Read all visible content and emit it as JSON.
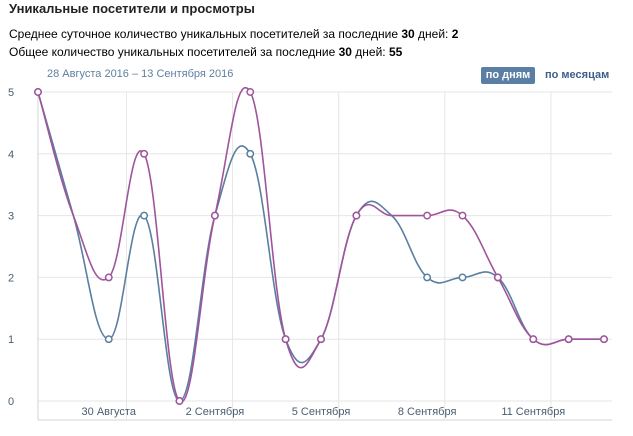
{
  "header": {
    "title": "Уникальные посетители и просмотры",
    "stat1": {
      "text": "Среднее суточное количество уникальных посетителей за последние ",
      "days": "30",
      "mid": " дней: ",
      "value": "2"
    },
    "stat2": {
      "text": "Общее количество уникальных посетителей за последние ",
      "days": "30",
      "mid": " дней: ",
      "value": "55"
    }
  },
  "date_range": "28 Августа 2016 – 13 Сентября 2016",
  "toggle": {
    "days_label": "по дням",
    "months_label": "по месяцам",
    "selected": "days"
  },
  "colors": {
    "unique": "#5a7fa1",
    "views": "#a0549b",
    "grid": "#e6e6e6",
    "button": "#5b7ea5"
  },
  "chart_data": {
    "type": "line",
    "x": [
      "28 Aug",
      "29 Aug",
      "30 Aug",
      "31 Aug",
      "1 Sep",
      "2 Sep",
      "3 Sep",
      "4 Sep",
      "5 Sep",
      "6 Sep",
      "7 Sep",
      "8 Sep",
      "9 Sep",
      "10 Sep",
      "11 Sep",
      "12 Sep",
      "13 Sep"
    ],
    "x_ticks": [
      {
        "index": 2,
        "label": "30 Августа"
      },
      {
        "index": 5,
        "label": "2 Сентября"
      },
      {
        "index": 8,
        "label": "5 Сентября"
      },
      {
        "index": 11,
        "label": "8 Сентября"
      },
      {
        "index": 14,
        "label": "11 Сентября"
      }
    ],
    "y_ticks": [
      0,
      1,
      2,
      3,
      4,
      5
    ],
    "ylim": [
      0,
      5
    ],
    "series": [
      {
        "key": "unique",
        "values": [
          5,
          3,
          1,
          3,
          0,
          3,
          4,
          1,
          1,
          3,
          3,
          2,
          2,
          2,
          1,
          1,
          1
        ]
      },
      {
        "key": "views",
        "values": [
          5,
          3,
          2,
          4,
          0,
          3,
          5,
          1,
          1,
          3,
          3,
          3,
          3,
          2,
          1,
          1,
          1
        ]
      }
    ],
    "markers": {
      "unique": [
        0,
        2,
        3,
        4,
        5,
        6,
        7,
        8,
        9,
        11,
        12,
        13,
        14,
        15,
        16
      ],
      "views": [
        0,
        2,
        3,
        4,
        5,
        6,
        7,
        8,
        9,
        11,
        12,
        13,
        14,
        15,
        16
      ]
    },
    "grid": true,
    "legend": "none"
  }
}
